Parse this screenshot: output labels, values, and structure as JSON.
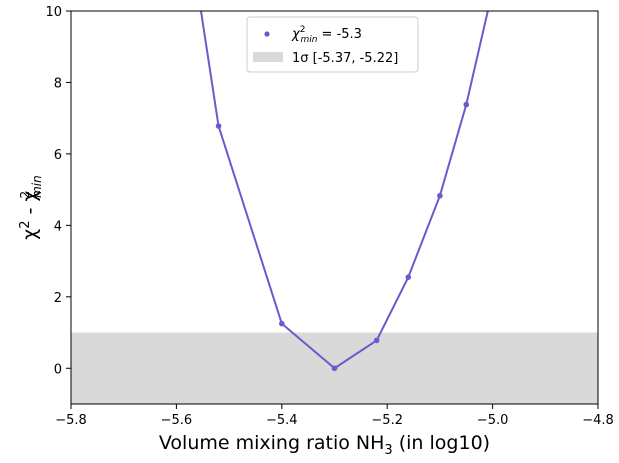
{
  "chart_data": {
    "type": "line",
    "xlabel": "Volume mixing ratio NH",
    "xlabel_sub": "3",
    "xlabel_suffix": " (in log10)",
    "ylabel_chi": "χ",
    "ylabel_sup": "2",
    "ylabel_mid": " - χ",
    "ylabel_sub": "min",
    "xlim": [
      -5.8,
      -4.8
    ],
    "ylim": [
      -1,
      10
    ],
    "xticks": [
      -5.8,
      -5.6,
      -5.4,
      -5.2,
      -5.0,
      -4.8
    ],
    "xtick_labels": [
      "−5.8",
      "−5.6",
      "−5.4",
      "−5.2",
      "−5.0",
      "−4.8"
    ],
    "yticks": [
      0,
      2,
      4,
      6,
      8,
      10
    ],
    "ytick_labels": [
      "0",
      "2",
      "4",
      "6",
      "8",
      "10"
    ],
    "series": [
      {
        "color": "#6a5acd",
        "x": [
          -5.6,
          -5.52,
          -5.4,
          -5.3,
          -5.22,
          -5.16,
          -5.1,
          -5.05,
          -4.97
        ],
        "y": [
          14.5,
          6.78,
          1.25,
          0.0,
          0.78,
          2.55,
          4.83,
          7.38,
          12.5
        ]
      }
    ],
    "markers": {
      "x": [
        -5.52,
        -5.4,
        -5.3,
        -5.22,
        -5.16,
        -5.1,
        -5.05
      ],
      "y": [
        6.78,
        1.25,
        0.0,
        0.78,
        2.55,
        4.83,
        7.38
      ]
    },
    "band": {
      "y_from": -1,
      "y_to": 1,
      "color": "#d9d9d9"
    },
    "legend": {
      "placement": "top-center",
      "entries": [
        {
          "kind": "marker",
          "label_prefix": "χ",
          "label_sup": "2",
          "label_sub": "min",
          "label_value": " = -5.3",
          "color": "#6a5acd"
        },
        {
          "kind": "patch",
          "label_sigma": "1σ",
          "label_range": " [-5.37, -5.22]",
          "color": "#d9d9d9"
        }
      ]
    }
  }
}
